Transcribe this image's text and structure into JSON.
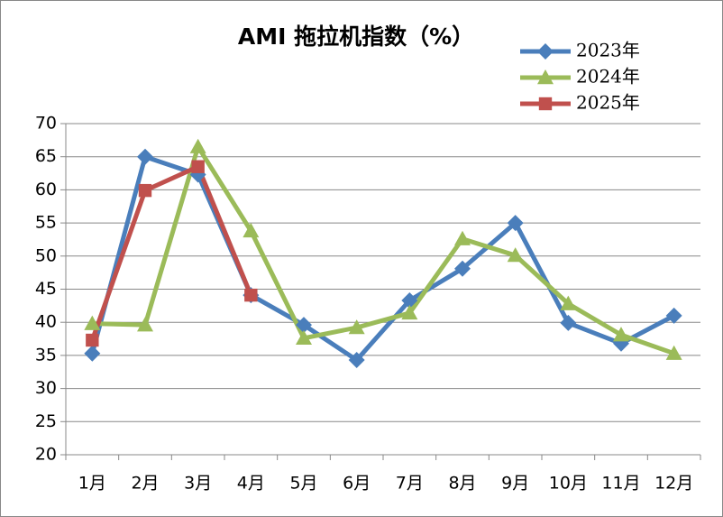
{
  "chart_data": {
    "type": "line",
    "title": "AMI 拖拉机指数（%）",
    "categories": [
      "1月",
      "2月",
      "3月",
      "4月",
      "5月",
      "6月",
      "7月",
      "8月",
      "9月",
      "10月",
      "11月",
      "12月"
    ],
    "series": [
      {
        "name": "2023年",
        "color": "#4a7ebb",
        "marker": "diamond",
        "values": [
          35.3,
          65,
          62.3,
          44.1,
          39.6,
          34.3,
          43.3,
          48.1,
          55,
          39.9,
          36.8,
          41
        ]
      },
      {
        "name": "2024年",
        "color": "#9bbb59",
        "marker": "triangle",
        "values": [
          39.8,
          39.6,
          66.5,
          53.8,
          37.6,
          39.2,
          41.4,
          52.6,
          50.1,
          42.8,
          38.1,
          35.3
        ]
      },
      {
        "name": "2025年",
        "color": "#c0504d",
        "marker": "square",
        "values": [
          37.3,
          59.9,
          63.5,
          44.1,
          null,
          null,
          null,
          null,
          null,
          null,
          null,
          null
        ]
      }
    ],
    "ylim": [
      20,
      70
    ],
    "yticks": [
      20,
      25,
      30,
      35,
      40,
      45,
      50,
      55,
      60,
      65,
      70
    ],
    "grid": true,
    "legend": "top-right"
  }
}
